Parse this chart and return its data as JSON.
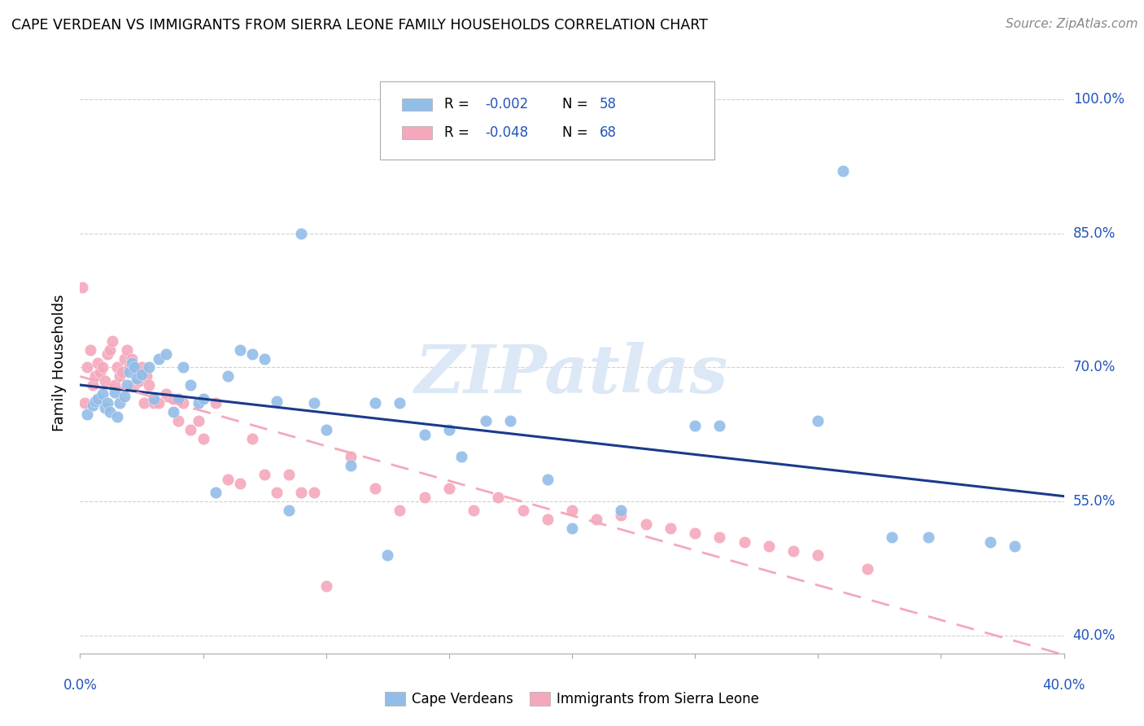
{
  "title": "CAPE VERDEAN VS IMMIGRANTS FROM SIERRA LEONE FAMILY HOUSEHOLDS CORRELATION CHART",
  "source": "Source: ZipAtlas.com",
  "ylabel": "Family Households",
  "yaxis_labels": [
    "100.0%",
    "85.0%",
    "70.0%",
    "55.0%",
    "40.0%"
  ],
  "yaxis_values": [
    1.0,
    0.85,
    0.7,
    0.55,
    0.4
  ],
  "xaxis_ticks_pct": [
    0,
    5,
    10,
    15,
    20,
    25,
    30,
    35,
    40
  ],
  "xlim": [
    0.0,
    0.4
  ],
  "ylim": [
    0.38,
    1.03
  ],
  "legend_r_blue": "-0.002",
  "legend_n_blue": "58",
  "legend_r_pink": "-0.048",
  "legend_n_pink": "68",
  "legend_label_blue": "Cape Verdeans",
  "legend_label_pink": "Immigrants from Sierra Leone",
  "blue_scatter_color": "#92bde8",
  "pink_scatter_color": "#f4a8bc",
  "trendline_blue": "#1a3a8c",
  "trendline_pink": "#f4a8bc",
  "watermark": "ZIPatlas",
  "watermark_color": "#dce8f5",
  "grid_color": "#d0d0d0",
  "text_blue": "#2255bb",
  "blue_x": [
    0.003,
    0.005,
    0.006,
    0.007,
    0.009,
    0.01,
    0.011,
    0.012,
    0.014,
    0.015,
    0.016,
    0.018,
    0.019,
    0.02,
    0.021,
    0.022,
    0.023,
    0.025,
    0.028,
    0.03,
    0.032,
    0.035,
    0.038,
    0.04,
    0.042,
    0.045,
    0.048,
    0.05,
    0.055,
    0.06,
    0.065,
    0.07,
    0.075,
    0.08,
    0.09,
    0.095,
    0.1,
    0.11,
    0.12,
    0.13,
    0.14,
    0.15,
    0.155,
    0.165,
    0.175,
    0.19,
    0.2,
    0.22,
    0.25,
    0.26,
    0.3,
    0.31,
    0.33,
    0.345,
    0.37,
    0.38,
    0.125,
    0.085
  ],
  "blue_y": [
    0.648,
    0.658,
    0.662,
    0.665,
    0.67,
    0.655,
    0.66,
    0.65,
    0.672,
    0.645,
    0.66,
    0.668,
    0.68,
    0.695,
    0.705,
    0.7,
    0.688,
    0.692,
    0.7,
    0.665,
    0.71,
    0.715,
    0.65,
    0.665,
    0.7,
    0.68,
    0.66,
    0.665,
    0.56,
    0.69,
    0.72,
    0.715,
    0.71,
    0.662,
    0.85,
    0.66,
    0.63,
    0.59,
    0.66,
    0.66,
    0.625,
    0.63,
    0.6,
    0.64,
    0.64,
    0.575,
    0.52,
    0.54,
    0.635,
    0.635,
    0.64,
    0.92,
    0.51,
    0.51,
    0.505,
    0.5,
    0.49,
    0.54
  ],
  "pink_x": [
    0.001,
    0.002,
    0.003,
    0.004,
    0.005,
    0.006,
    0.007,
    0.008,
    0.009,
    0.01,
    0.011,
    0.012,
    0.013,
    0.014,
    0.015,
    0.016,
    0.017,
    0.018,
    0.019,
    0.02,
    0.021,
    0.022,
    0.023,
    0.024,
    0.025,
    0.026,
    0.027,
    0.028,
    0.03,
    0.032,
    0.035,
    0.038,
    0.04,
    0.042,
    0.045,
    0.048,
    0.05,
    0.055,
    0.06,
    0.065,
    0.07,
    0.075,
    0.08,
    0.085,
    0.09,
    0.095,
    0.1,
    0.11,
    0.12,
    0.13,
    0.14,
    0.15,
    0.16,
    0.17,
    0.18,
    0.19,
    0.2,
    0.21,
    0.22,
    0.23,
    0.24,
    0.25,
    0.26,
    0.27,
    0.28,
    0.29,
    0.3,
    0.32
  ],
  "pink_y": [
    0.79,
    0.66,
    0.7,
    0.72,
    0.68,
    0.69,
    0.705,
    0.695,
    0.7,
    0.685,
    0.715,
    0.72,
    0.73,
    0.68,
    0.7,
    0.69,
    0.695,
    0.71,
    0.72,
    0.7,
    0.71,
    0.68,
    0.695,
    0.685,
    0.7,
    0.66,
    0.69,
    0.68,
    0.66,
    0.66,
    0.67,
    0.665,
    0.64,
    0.66,
    0.63,
    0.64,
    0.62,
    0.66,
    0.575,
    0.57,
    0.62,
    0.58,
    0.56,
    0.58,
    0.56,
    0.56,
    0.455,
    0.6,
    0.565,
    0.54,
    0.555,
    0.565,
    0.54,
    0.555,
    0.54,
    0.53,
    0.54,
    0.53,
    0.535,
    0.525,
    0.52,
    0.515,
    0.51,
    0.505,
    0.5,
    0.495,
    0.49,
    0.475
  ]
}
